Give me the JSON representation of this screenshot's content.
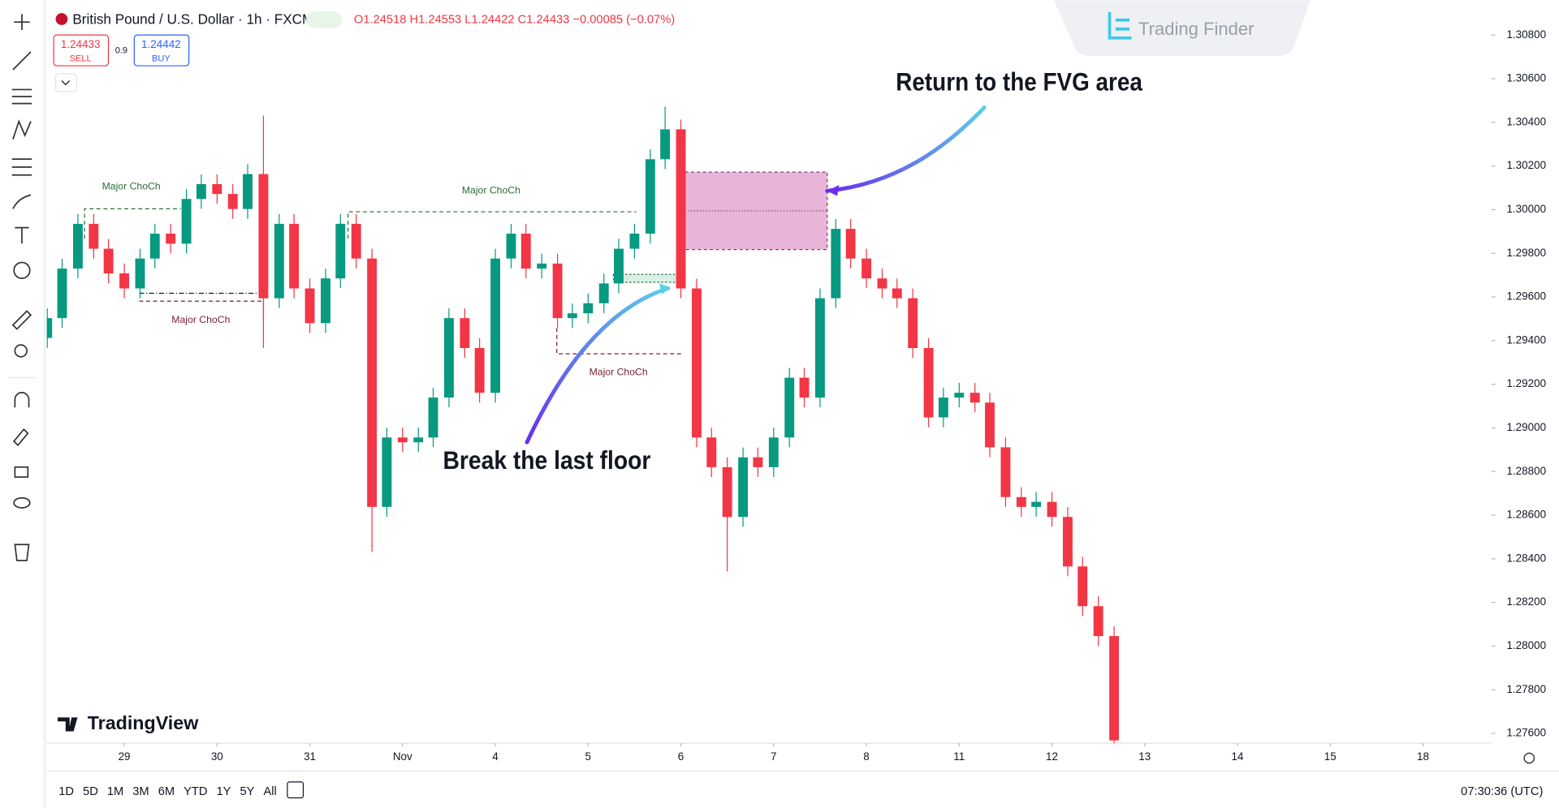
{
  "header": {
    "symbol": "British Pound / U.S. Dollar · 1h · FXCM",
    "ohlc": "O1.24518 H1.24553 L1.24422 C1.24433 −0.00085 (−0.07%)",
    "sell_price": "1.24433",
    "sell_label": "SELL",
    "spread": "0.9",
    "buy_price": "1.24442",
    "buy_label": "BUY"
  },
  "watermark": {
    "brand": "Trading Finder",
    "platform": "TradingView"
  },
  "chart_data": {
    "type": "candlestick",
    "x": [
      -0.83,
      -0.67,
      -0.5,
      -0.33,
      -0.17,
      0,
      0.17,
      0.33,
      0.5,
      0.67,
      0.83,
      1,
      1.17,
      1.33,
      1.5,
      1.67,
      1.83,
      2,
      2.17,
      2.33,
      2.5,
      2.67,
      2.83,
      3,
      3.17,
      3.33,
      3.5,
      3.67,
      3.83,
      4,
      4.17,
      4.33,
      4.5,
      4.67,
      4.83,
      5,
      5.17,
      5.33,
      5.5,
      5.67,
      5.83,
      6,
      6.17,
      6.33,
      6.5,
      6.67,
      6.83,
      7,
      7.17,
      7.33,
      7.5,
      7.67,
      7.83,
      8,
      8.17,
      8.33,
      8.5,
      8.67,
      8.83,
      9,
      9.17,
      9.33,
      9.5,
      9.67,
      9.83,
      10,
      10.17,
      10.33,
      10.5,
      10.67
    ],
    "open": [
      1.29412,
      1.29503,
      1.2973,
      1.29935,
      1.29821,
      1.29708,
      1.29639,
      1.29776,
      1.2989,
      1.29844,
      1.30049,
      1.30117,
      1.30072,
      1.30003,
      1.30163,
      1.29594,
      1.29935,
      1.29639,
      1.2948,
      1.29685,
      1.29935,
      1.29776,
      1.28638,
      1.28956,
      1.28934,
      1.28956,
      1.29139,
      1.29503,
      1.29366,
      1.29161,
      1.29776,
      1.2989,
      1.2973,
      1.29753,
      1.29503,
      1.29525,
      1.29571,
      1.29662,
      1.29821,
      1.2989,
      1.30231,
      1.30368,
      1.29639,
      1.28956,
      1.2882,
      1.28592,
      1.28865,
      1.2882,
      1.28956,
      1.2923,
      1.29139,
      1.29594,
      1.29912,
      1.29776,
      1.29685,
      1.29639,
      1.29594,
      1.29366,
      1.29048,
      1.29139,
      1.29161,
      1.29116,
      1.28911,
      1.28683,
      1.28638,
      1.28661,
      1.28592,
      1.28365,
      1.28183,
      1.28046
    ],
    "high": [
      1.29548,
      1.29775,
      1.2998,
      1.2998,
      1.29866,
      1.29753,
      1.29821,
      1.29935,
      1.29935,
      1.30094,
      1.30162,
      1.30162,
      1.30117,
      1.30208,
      1.30431,
      1.2998,
      1.2998,
      1.29684,
      1.2973,
      1.2998,
      1.2998,
      1.29821,
      1.29001,
      1.29001,
      1.29001,
      1.29184,
      1.29548,
      1.29548,
      1.29411,
      1.29821,
      1.29935,
      1.29935,
      1.29798,
      1.29798,
      1.2957,
      1.29616,
      1.29707,
      1.29866,
      1.29935,
      1.30276,
      1.30472,
      1.30413,
      1.29684,
      1.29001,
      1.28865,
      1.2891,
      1.2891,
      1.29001,
      1.29275,
      1.29275,
      1.29639,
      1.29957,
      1.29957,
      1.29821,
      1.2973,
      1.29684,
      1.29639,
      1.29411,
      1.29184,
      1.29206,
      1.29206,
      1.29161,
      1.28956,
      1.28728,
      1.28706,
      1.28706,
      1.28637,
      1.2841,
      1.28228,
      1.28091
    ],
    "low": [
      1.29367,
      1.29458,
      1.29685,
      1.29776,
      1.29663,
      1.29594,
      1.29594,
      1.29731,
      1.29799,
      1.29799,
      1.30004,
      1.30027,
      1.29958,
      1.29958,
      1.29366,
      1.29549,
      1.29594,
      1.29435,
      1.29435,
      1.2964,
      1.29731,
      1.28433,
      1.28593,
      1.28889,
      1.28889,
      1.28911,
      1.29094,
      1.29321,
      1.29116,
      1.29116,
      1.29731,
      1.29685,
      1.29685,
      1.29458,
      1.29458,
      1.2948,
      1.29526,
      1.29617,
      1.29776,
      1.29845,
      1.30186,
      1.29594,
      1.28911,
      1.28775,
      1.28342,
      1.28547,
      1.28775,
      1.28775,
      1.28911,
      1.29094,
      1.29094,
      1.29549,
      1.29731,
      1.2964,
      1.29594,
      1.29549,
      1.29321,
      1.29003,
      1.29003,
      1.29094,
      1.29071,
      1.28866,
      1.28638,
      1.28593,
      1.28593,
      1.28547,
      1.2832,
      1.28138,
      1.28001,
      1.27523
    ],
    "close": [
      1.29503,
      1.2973,
      1.29935,
      1.29821,
      1.29708,
      1.29639,
      1.29776,
      1.2989,
      1.29844,
      1.30049,
      1.30117,
      1.30072,
      1.30003,
      1.30163,
      1.29594,
      1.29935,
      1.29639,
      1.2948,
      1.29685,
      1.29935,
      1.29776,
      1.28638,
      1.28956,
      1.28934,
      1.28956,
      1.29139,
      1.29503,
      1.29366,
      1.29161,
      1.29776,
      1.2989,
      1.2973,
      1.29753,
      1.29503,
      1.29525,
      1.29571,
      1.29662,
      1.29821,
      1.2989,
      1.30231,
      1.30368,
      1.29639,
      1.28956,
      1.2882,
      1.28592,
      1.28865,
      1.2882,
      1.28956,
      1.2923,
      1.29139,
      1.29594,
      1.29912,
      1.29776,
      1.29685,
      1.29639,
      1.29594,
      1.29366,
      1.29048,
      1.29139,
      1.29161,
      1.29116,
      1.28911,
      1.28683,
      1.28638,
      1.28661,
      1.28592,
      1.28365,
      1.28183,
      1.28046,
      1.27568
    ],
    "up_color": "#089981",
    "down_color": "#f23645",
    "xlim": [
      -0.836,
      14.737
    ],
    "xticks": [
      {
        "value": 0,
        "label": "29"
      },
      {
        "value": 1,
        "label": "30"
      },
      {
        "value": 2,
        "label": "31"
      },
      {
        "value": 3,
        "label": "Nov"
      },
      {
        "value": 4,
        "label": "4"
      },
      {
        "value": 5,
        "label": "5"
      },
      {
        "value": 6,
        "label": "6"
      },
      {
        "value": 7,
        "label": "7"
      },
      {
        "value": 8,
        "label": "8"
      },
      {
        "value": 9,
        "label": "11"
      },
      {
        "value": 10,
        "label": "12"
      },
      {
        "value": 11,
        "label": "13"
      },
      {
        "value": 12,
        "label": "14"
      },
      {
        "value": 13,
        "label": "15"
      },
      {
        "value": 14,
        "label": "18"
      }
    ],
    "ylim": [
      1.27555,
      1.30937
    ],
    "yticks": [
      {
        "value": 1.308,
        "label": "1.30800"
      },
      {
        "value": 1.306,
        "label": "1.30600"
      },
      {
        "value": 1.304,
        "label": "1.30400"
      },
      {
        "value": 1.302,
        "label": "1.30200"
      },
      {
        "value": 1.3,
        "label": "1.30000"
      },
      {
        "value": 1.298,
        "label": "1.29800"
      },
      {
        "value": 1.296,
        "label": "1.29600"
      },
      {
        "value": 1.294,
        "label": "1.29400"
      },
      {
        "value": 1.292,
        "label": "1.29200"
      },
      {
        "value": 1.29,
        "label": "1.29000"
      },
      {
        "value": 1.288,
        "label": "1.28800"
      },
      {
        "value": 1.286,
        "label": "1.28600"
      },
      {
        "value": 1.284,
        "label": "1.28400"
      },
      {
        "value": 1.282,
        "label": "1.28200"
      },
      {
        "value": 1.28,
        "label": "1.28000"
      },
      {
        "value": 1.278,
        "label": "1.27800"
      },
      {
        "value": 1.276,
        "label": "1.27600"
      }
    ],
    "annotations": [
      "Return to the FVG area",
      "Break the last floor"
    ],
    "structure_labels": [
      "Major ChoCh",
      "Major ChoCh",
      "Major ChoCh",
      "Major ChoCh"
    ]
  },
  "toolbar": {
    "ranges": [
      "1D",
      "5D",
      "1M",
      "3M",
      "6M",
      "YTD",
      "1Y",
      "5Y",
      "All"
    ],
    "time": "07:30:36 (UTC)"
  }
}
